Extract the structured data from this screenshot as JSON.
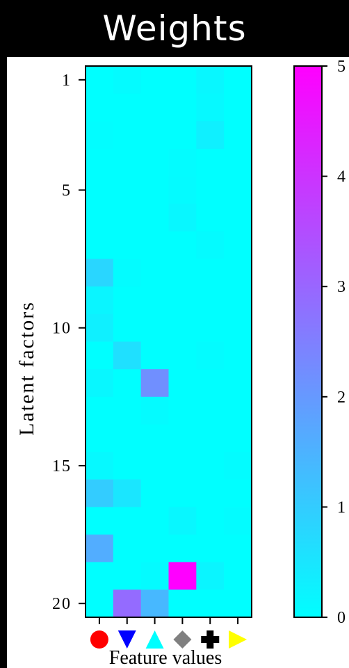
{
  "title": "Weights",
  "chart_data": {
    "type": "heatmap",
    "title": "Weights",
    "xlabel": "Feature values",
    "ylabel": "Latent factors",
    "rows": 20,
    "cols": 6,
    "y_tick_labels": [
      {
        "row": 1,
        "label": "1"
      },
      {
        "row": 5,
        "label": "5"
      },
      {
        "row": 10,
        "label": "10"
      },
      {
        "row": 15,
        "label": "15"
      },
      {
        "row": 20,
        "label": "20"
      }
    ],
    "x_markers": [
      {
        "shape": "circle",
        "color": "#ff0000"
      },
      {
        "shape": "triangle-down",
        "color": "#0000ff"
      },
      {
        "shape": "triangle-up",
        "color": "#00ffff"
      },
      {
        "shape": "diamond",
        "color": "#808080"
      },
      {
        "shape": "cross",
        "color": "#000000"
      },
      {
        "shape": "triangle-right",
        "color": "#ffff00"
      }
    ],
    "colorbar": {
      "min": 0,
      "max": 5,
      "ticks": [
        "0",
        "1",
        "2",
        "3",
        "4",
        "5"
      ],
      "colormap": "cool",
      "colors": [
        "#00ffff",
        "#ff00ff"
      ]
    },
    "values": [
      [
        0.0,
        0.08,
        0.0,
        0.0,
        0.15,
        0.0
      ],
      [
        0.0,
        0.0,
        0.0,
        0.0,
        0.12,
        0.0
      ],
      [
        0.03,
        0.0,
        0.0,
        0.0,
        0.3,
        0.0
      ],
      [
        0.0,
        0.0,
        0.0,
        0.05,
        0.0,
        0.0
      ],
      [
        0.0,
        0.0,
        0.0,
        0.08,
        0.0,
        0.0
      ],
      [
        0.0,
        0.0,
        0.0,
        0.15,
        0.0,
        0.0
      ],
      [
        0.0,
        0.0,
        0.0,
        0.0,
        0.08,
        0.0
      ],
      [
        0.8,
        0.05,
        0.0,
        0.0,
        0.0,
        0.0
      ],
      [
        0.2,
        0.0,
        0.0,
        0.0,
        0.0,
        0.0
      ],
      [
        0.3,
        0.0,
        0.0,
        0.0,
        0.0,
        0.0
      ],
      [
        0.0,
        0.6,
        0.0,
        0.0,
        0.05,
        0.0
      ],
      [
        0.15,
        0.0,
        2.2,
        0.0,
        0.0,
        0.0
      ],
      [
        0.0,
        0.0,
        0.08,
        0.0,
        0.0,
        0.0
      ],
      [
        0.0,
        0.0,
        0.0,
        0.0,
        0.0,
        0.0
      ],
      [
        0.12,
        0.0,
        0.0,
        0.0,
        0.0,
        0.05
      ],
      [
        1.0,
        0.5,
        0.0,
        0.0,
        0.0,
        0.0
      ],
      [
        0.0,
        0.0,
        0.0,
        0.15,
        0.0,
        0.05
      ],
      [
        1.6,
        0.0,
        0.0,
        0.0,
        0.0,
        0.0
      ],
      [
        0.0,
        0.0,
        0.08,
        5.0,
        0.2,
        0.0
      ],
      [
        0.0,
        2.9,
        1.4,
        0.0,
        0.0,
        0.0
      ]
    ]
  }
}
